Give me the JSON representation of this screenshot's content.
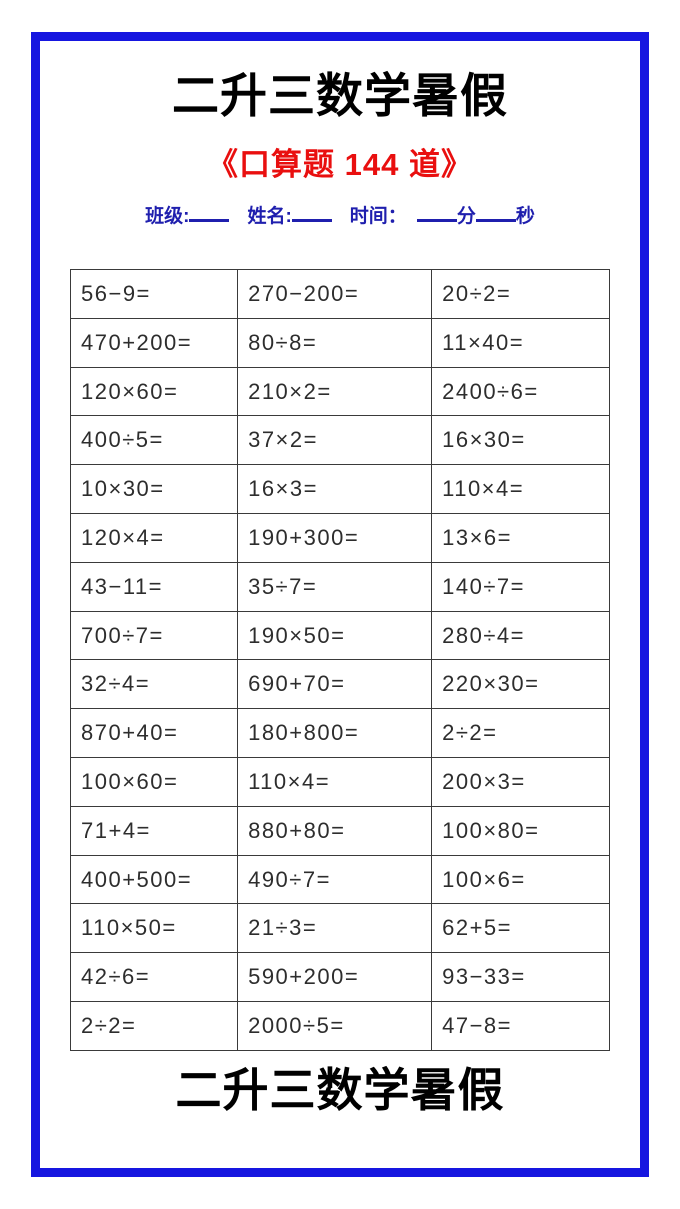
{
  "header": {
    "title": "二升三数学暑假",
    "subtitle": "《口算题 144 道》",
    "info": {
      "class_label": "班级:",
      "name_label": "姓名:",
      "time_label": "时间：",
      "minutes_label": "分",
      "seconds_label": "秒"
    }
  },
  "colors": {
    "frame_blue": "#1616e0",
    "info_blue": "#1f1fae",
    "subtitle_red": "#e90f0f",
    "text_dark": "#2d2d2d"
  },
  "table": {
    "columns": 3,
    "rows": [
      [
        "56−9=",
        "270−200=",
        "20÷2="
      ],
      [
        "470+200=",
        "80÷8=",
        "11×40="
      ],
      [
        "120×60=",
        "210×2=",
        "2400÷6="
      ],
      [
        "400÷5=",
        "37×2=",
        "16×30="
      ],
      [
        "10×30=",
        "16×3=",
        "110×4="
      ],
      [
        "120×4=",
        "190+300=",
        "13×6="
      ],
      [
        "43−11=",
        "35÷7=",
        "140÷7="
      ],
      [
        "700÷7=",
        "190×50=",
        "280÷4="
      ],
      [
        "32÷4=",
        "690+70=",
        "220×30="
      ],
      [
        "870+40=",
        "180+800=",
        "2÷2="
      ],
      [
        "100×60=",
        "110×4=",
        "200×3="
      ],
      [
        "71+4=",
        "880+80=",
        "100×80="
      ],
      [
        "400+500=",
        "490÷7=",
        "100×6="
      ],
      [
        "110×50=",
        "21÷3=",
        "62+5="
      ],
      [
        "42÷6=",
        "590+200=",
        "93−33="
      ],
      [
        "2÷2=",
        "2000÷5=",
        "47−8="
      ]
    ]
  },
  "footer": {
    "title": "二升三数学暑假"
  }
}
